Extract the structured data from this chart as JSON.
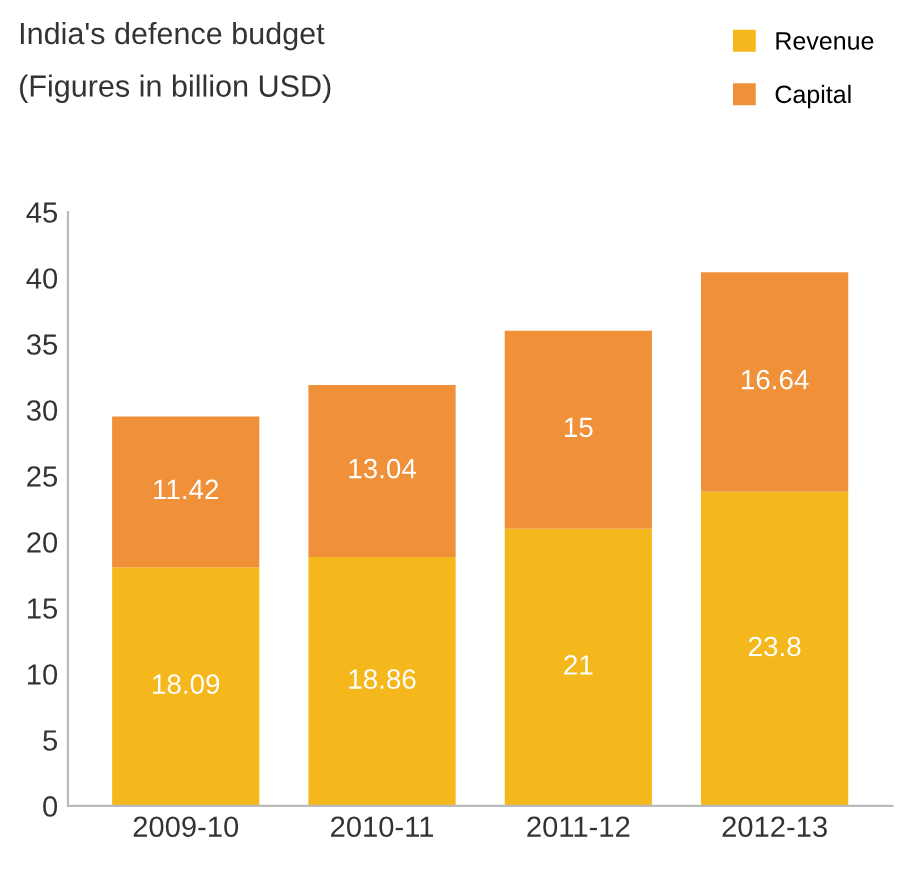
{
  "chart_data": {
    "type": "bar",
    "title": "India's defence budget",
    "subtitle": "(Figures in billion USD)",
    "categories": [
      "2009-10",
      "2010-11",
      "2011-12",
      "2012-13"
    ],
    "series": [
      {
        "name": "Revenue",
        "color": "#f5b81c",
        "values": [
          18.09,
          18.86,
          21,
          23.8
        ]
      },
      {
        "name": "Capital",
        "color": "#f0913a",
        "values": [
          11.42,
          13.04,
          15,
          16.64
        ]
      }
    ],
    "stacked": true,
    "data_labels": true,
    "ylim": [
      0,
      45
    ],
    "yticks": [
      0,
      5,
      10,
      15,
      20,
      25,
      30,
      35,
      40,
      45
    ],
    "grid": false,
    "legend": "top right"
  }
}
